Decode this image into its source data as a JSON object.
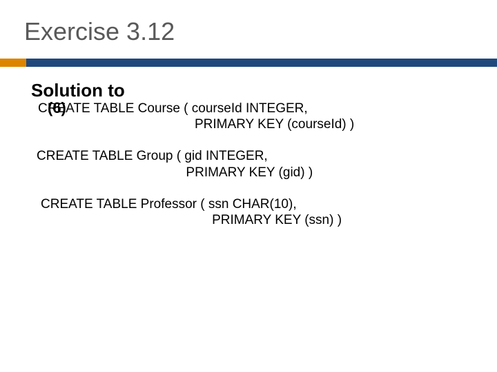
{
  "slide": {
    "title": "Exercise 3.12",
    "subheading": "Solution to",
    "subheading_num": "(6)",
    "colors": {
      "title_text": "#595959",
      "body_text": "#000000",
      "bar_accent": "#dd8500",
      "bar_main": "#1f497d",
      "background": "#ffffff"
    },
    "fonts": {
      "title_size": 36,
      "heading_size": 26,
      "body_size": 19
    },
    "sql": {
      "course_l1": "CREATE TABLE Course ( courseId INTEGER,",
      "course_l2": "                                           PRIMARY KEY (courseId) )",
      "group_l1": "CREATE TABLE Group ( gid INTEGER,",
      "group_l2": "                                         PRIMARY KEY (gid) )",
      "prof_l1": "CREATE TABLE Professor ( ssn CHAR(10),",
      "prof_l2": "                                               PRIMARY KEY (ssn) )"
    }
  }
}
